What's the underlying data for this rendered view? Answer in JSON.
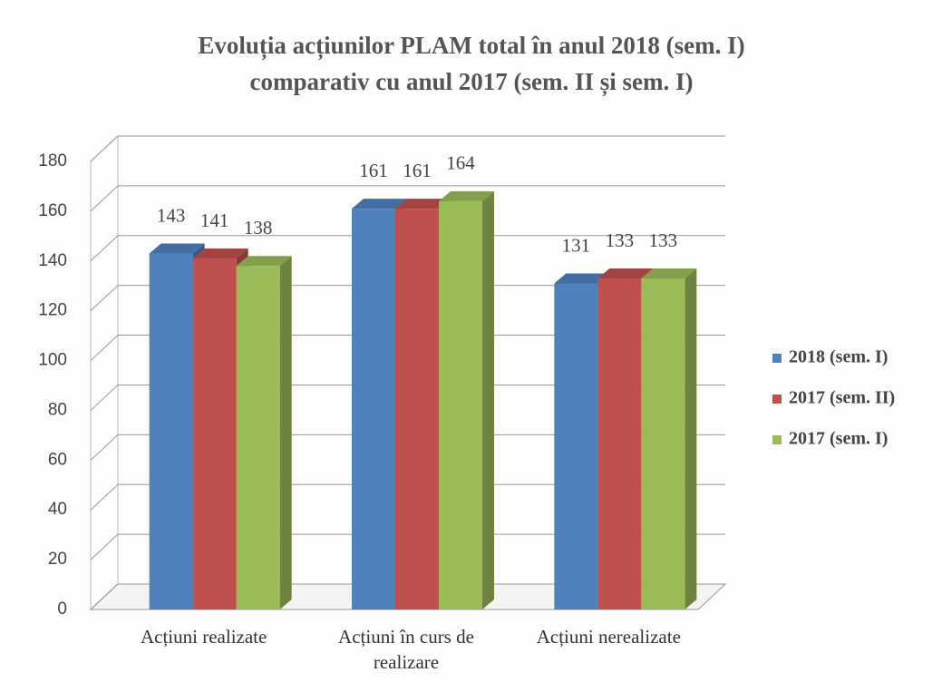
{
  "chart_data": {
    "type": "bar3d",
    "title": "Evoluția acțiunilor PLAM total în anul 2018 (sem. I) comparativ cu anul 2017 (sem. II și sem. I)",
    "categories": [
      "Acțiuni realizate",
      "Acțiuni în curs de realizare",
      "Acțiuni nerealizate"
    ],
    "series": [
      {
        "name": "2018 (sem. I)",
        "color": "#4f81bd",
        "values": [
          143,
          161,
          131
        ]
      },
      {
        "name": "2017 (sem. II)",
        "color": "#c0504d",
        "values": [
          141,
          161,
          133
        ]
      },
      {
        "name": "2017 (sem. I)",
        "color": "#9bbb59",
        "values": [
          138,
          164,
          133
        ]
      }
    ],
    "ylim": [
      0,
      180
    ],
    "yticks": [
      0,
      20,
      40,
      60,
      80,
      100,
      120,
      140,
      160,
      180
    ],
    "grid": true,
    "legend": "right"
  }
}
